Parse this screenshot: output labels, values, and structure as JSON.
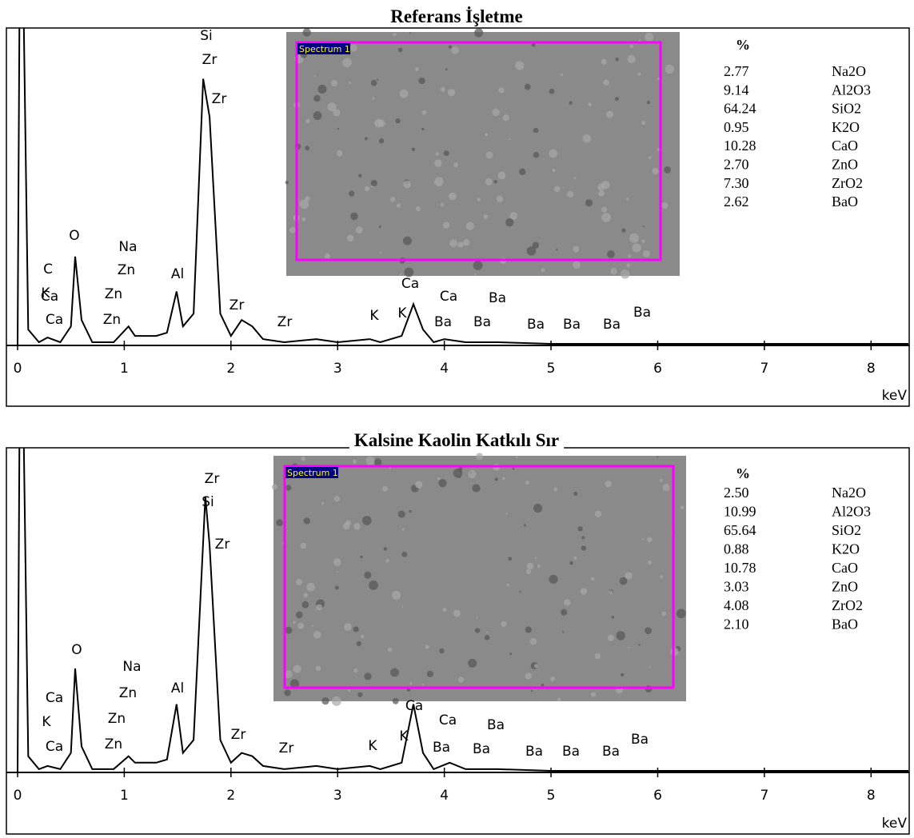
{
  "chart_data": [
    {
      "type": "line",
      "title": "Referans İşletme",
      "xlabel": "keV",
      "image_label": "Spectrum 1",
      "xlim": [
        0,
        8.35
      ],
      "xticks": [
        0,
        1,
        2,
        3,
        4,
        5,
        6,
        7,
        8
      ],
      "ylim": [
        0,
        100
      ],
      "grid": false,
      "series": [
        {
          "name": "Spectrum 1",
          "color": "#000000",
          "x": [
            0,
            0.02,
            0.05,
            0.1,
            0.2,
            0.28,
            0.4,
            0.5,
            0.54,
            0.6,
            0.7,
            0.9,
            1.04,
            1.1,
            1.3,
            1.4,
            1.49,
            1.55,
            1.65,
            1.74,
            1.8,
            1.9,
            2.0,
            2.1,
            2.2,
            2.3,
            2.5,
            2.8,
            3.0,
            3.3,
            3.4,
            3.6,
            3.71,
            3.8,
            3.9,
            4.0,
            4.2,
            4.5,
            5.0,
            6.0,
            7.0,
            8.35
          ],
          "values": [
            0,
            120,
            120,
            5,
            1,
            2.5,
            1,
            6,
            28,
            8,
            1,
            1,
            6,
            3,
            3,
            4,
            17,
            6,
            10,
            84,
            72,
            10,
            3,
            8,
            6,
            2,
            1,
            2,
            1,
            2,
            1,
            3,
            13,
            5,
            1,
            2,
            1,
            1,
            0.5,
            0.5,
            0.5,
            0.5
          ]
        }
      ],
      "annotations": [
        "Si",
        "Zr",
        "Zr",
        "C",
        "O",
        "Na",
        "K",
        "Zn",
        "Al",
        "Ca",
        "Zn",
        "Ca",
        "Zn",
        "Zr",
        "Zr",
        "K",
        "K",
        "Ca",
        "Ca",
        "Ba",
        "Ba",
        "Ba",
        "Ba",
        "Ba",
        "Ba",
        "Ba"
      ],
      "table": {
        "header": "%",
        "rows": [
          [
            "2.77",
            "Na2O"
          ],
          [
            "9.14",
            "Al2O3"
          ],
          [
            "64.24",
            "SiO2"
          ],
          [
            "0.95",
            "K2O"
          ],
          [
            "10.28",
            "CaO"
          ],
          [
            "2.70",
            "ZnO"
          ],
          [
            "7.30",
            "ZrO2"
          ],
          [
            "2.62",
            "BaO"
          ]
        ]
      }
    },
    {
      "type": "line",
      "title": "Kalsine Kaolin Katkılı Sır",
      "xlabel": "keV",
      "image_label": "Spectrum 1",
      "xlim": [
        0,
        8.35
      ],
      "xticks": [
        0,
        1,
        2,
        3,
        4,
        5,
        6,
        7,
        8
      ],
      "ylim": [
        0,
        100
      ],
      "grid": false,
      "series": [
        {
          "name": "Spectrum 1",
          "color": "#000000",
          "x": [
            0,
            0.02,
            0.05,
            0.1,
            0.2,
            0.28,
            0.4,
            0.5,
            0.54,
            0.6,
            0.7,
            0.9,
            1.04,
            1.1,
            1.3,
            1.4,
            1.49,
            1.55,
            1.65,
            1.76,
            1.8,
            1.9,
            2.0,
            2.1,
            2.2,
            2.3,
            2.5,
            2.8,
            3.0,
            3.3,
            3.4,
            3.6,
            3.71,
            3.8,
            3.9,
            4.05,
            4.2,
            4.5,
            5.0,
            6.0,
            7.0,
            8.35
          ],
          "values": [
            0,
            120,
            120,
            5,
            1,
            2,
            1,
            6,
            32,
            8,
            1,
            1,
            5,
            3,
            3,
            4,
            21,
            6,
            10,
            85,
            70,
            10,
            3,
            6,
            5,
            2,
            1,
            2,
            1,
            2,
            1,
            3,
            21,
            6,
            1,
            3,
            1,
            1,
            0.5,
            0.5,
            0.5,
            0.5
          ]
        }
      ],
      "annotations": [
        "Zr",
        "Si",
        "Zr",
        "O",
        "Na",
        "Ca",
        "Zn",
        "Al",
        "K",
        "Zn",
        "Ca",
        "Zn",
        "Zr",
        "Zr",
        "K",
        "K",
        "Ca",
        "Ca",
        "Ba",
        "Ba",
        "Ba",
        "Ba",
        "Ba",
        "Ba",
        "Ba"
      ],
      "table": {
        "header": "%",
        "rows": [
          [
            "2.50",
            "Na2O"
          ],
          [
            "10.99",
            "Al2O3"
          ],
          [
            "65.64",
            "SiO2"
          ],
          [
            "0.88",
            "K2O"
          ],
          [
            "10.78",
            "CaO"
          ],
          [
            "3.03",
            "ZnO"
          ],
          [
            "4.08",
            "ZrO2"
          ],
          [
            "2.10",
            "BaO"
          ]
        ]
      }
    }
  ]
}
